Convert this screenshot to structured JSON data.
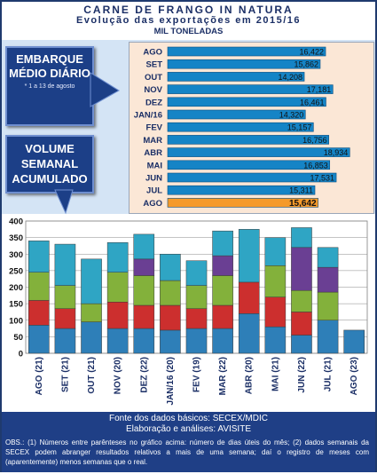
{
  "header": {
    "title": "CARNE DE FRANGO IN NATURA",
    "subtitle": "Evolução das exportações em 2015/16",
    "unit": "MIL TONELADAS"
  },
  "boxes": {
    "daily": "EMBARQUE MÉDIO DIÁRIO",
    "daily_note": "* 1 a 13 de agosto",
    "weekly": "VOLUME SEMANAL ACUMULADO"
  },
  "footer": {
    "source": "Fonte dos dados básicos: SECEX/MDIC",
    "credits": "Elaboração e análises: AVISITE",
    "obs": "OBS.: (1) Números entre parênteses no gráfico acima: número de dias úteis do mês; (2) dados semanais da SECEX podem abranger resultados relativos a mais de uma semana; daí o registro de meses com (aparentemente) menos semanas que o real."
  },
  "colors": {
    "week1": "#2e7fb8",
    "week2": "#cc2f2e",
    "week3": "#83b13b",
    "week4": "#6a3f93",
    "week5": "#2fa5c4",
    "hbar": "#1584c6",
    "hbar_highlight": "#f59a2a"
  },
  "chart_data": [
    {
      "type": "bar",
      "orientation": "horizontal",
      "categories": [
        "AGO",
        "SET",
        "OUT",
        "NOV",
        "DEZ",
        "JAN/16",
        "FEV",
        "MAR",
        "ABR",
        "MAI",
        "JUN",
        "JUL",
        "AGO"
      ],
      "value_labels": [
        "16,422",
        "15,862",
        "14,208",
        "17,181",
        "16,461",
        "14,320",
        "15,157",
        "16,756",
        "18,934",
        "16,853",
        "17,531",
        "15,311",
        "15,642"
      ],
      "values": [
        16.422,
        15.862,
        14.208,
        17.181,
        16.461,
        14.32,
        15.157,
        16.756,
        18.934,
        16.853,
        17.531,
        15.311,
        15.642
      ],
      "highlight_index": 12
    },
    {
      "type": "bar",
      "stacked": true,
      "categories": [
        "AGO (21)",
        "SET (21)",
        "OUT (21)",
        "NOV (20)",
        "DEZ (22)",
        "JAN/16 (20)",
        "FEV (19)",
        "MAR (22)",
        "ABR (20)",
        "MAI (21)",
        "JUN (22)",
        "JUL (21)",
        "AGO (23)"
      ],
      "series": [
        {
          "values": [
            85,
            75,
            95,
            75,
            75,
            70,
            75,
            75,
            120,
            80,
            55,
            100,
            70
          ]
        },
        {
          "values": [
            75,
            60,
            0,
            80,
            70,
            75,
            60,
            70,
            95,
            90,
            70,
            0,
            0
          ]
        },
        {
          "values": [
            85,
            70,
            55,
            90,
            90,
            75,
            70,
            90,
            0,
            95,
            65,
            85,
            0
          ]
        },
        {
          "values": [
            0,
            0,
            0,
            0,
            50,
            0,
            0,
            60,
            0,
            0,
            130,
            75,
            0
          ]
        },
        {
          "values": [
            95,
            125,
            135,
            90,
            75,
            80,
            75,
            75,
            160,
            85,
            60,
            60,
            0
          ]
        }
      ],
      "ylim": [
        0,
        400
      ],
      "yticks": [
        0,
        50,
        100,
        150,
        200,
        250,
        300,
        350,
        400
      ]
    }
  ]
}
